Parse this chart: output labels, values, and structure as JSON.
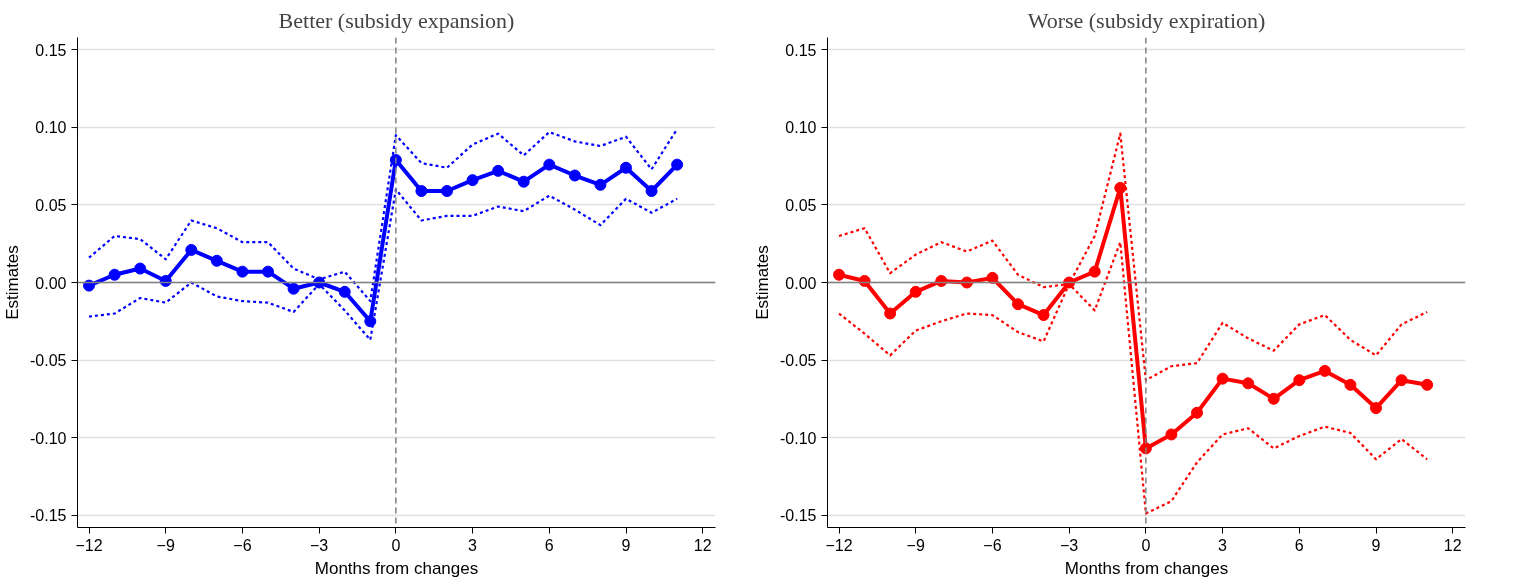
{
  "chart_data": [
    {
      "type": "line",
      "title": "Better (subsidy expansion)",
      "xlabel": "Months from changes",
      "ylabel": "Estimates",
      "x": [
        -12,
        -11,
        -10,
        -9,
        -8,
        -7,
        -6,
        -5,
        -4,
        -3,
        -2,
        -1,
        0,
        1,
        2,
        3,
        4,
        5,
        6,
        7,
        8,
        9,
        10,
        11
      ],
      "series": [
        {
          "color": "#0000ff",
          "marker": "circle",
          "line_style": "solid",
          "values": [
            -0.002,
            0.005,
            0.009,
            0.001,
            0.021,
            0.014,
            0.007,
            0.007,
            -0.004,
            0.0,
            -0.006,
            -0.025,
            0.079,
            0.059,
            0.059,
            0.066,
            0.072,
            0.065,
            0.076,
            0.069,
            0.063,
            0.074,
            0.059,
            0.076
          ]
        },
        {
          "color": "#0000ff",
          "marker": "none",
          "line_style": "dotted",
          "values": [
            0.016,
            0.03,
            0.028,
            0.015,
            0.04,
            0.035,
            0.026,
            0.026,
            0.009,
            0.002,
            0.007,
            -0.012,
            0.095,
            0.077,
            0.074,
            0.089,
            0.096,
            0.082,
            0.097,
            0.091,
            0.088,
            0.094,
            0.073,
            0.099
          ]
        },
        {
          "color": "#0000ff",
          "marker": "none",
          "line_style": "dotted",
          "values": [
            -0.022,
            -0.02,
            -0.01,
            -0.013,
            0.0,
            -0.009,
            -0.012,
            -0.013,
            -0.019,
            -0.001,
            -0.018,
            -0.037,
            0.06,
            0.04,
            0.043,
            0.043,
            0.049,
            0.046,
            0.056,
            0.047,
            0.037,
            0.054,
            0.045,
            0.054
          ]
        }
      ],
      "xlim": [
        -12.45,
        12.5
      ],
      "xticks": [
        -12,
        -9,
        -6,
        -3,
        0,
        3,
        6,
        9,
        12
      ],
      "ylim": [
        -0.158,
        0.158
      ],
      "yticks": [
        {
          "value": -0.15,
          "label": "-0.15"
        },
        {
          "value": -0.1,
          "label": "-0.10"
        },
        {
          "value": -0.05,
          "label": "-0.05"
        },
        {
          "value": 0,
          "label": "0.00"
        },
        {
          "value": 0.05,
          "label": "0.05"
        },
        {
          "value": 0.1,
          "label": "0.10"
        },
        {
          "value": 0.15,
          "label": "0.15"
        }
      ],
      "grid": "y",
      "ref_lines": [
        {
          "axis": "y",
          "value": 0,
          "color": "#808080",
          "line_style": "solid"
        },
        {
          "axis": "x",
          "value": 0,
          "color": "#808080",
          "line_style": "dashed"
        }
      ]
    },
    {
      "type": "line",
      "title": "Worse (subsidy expiration)",
      "xlabel": "Months from changes",
      "ylabel": "Estimates",
      "x": [
        -12,
        -11,
        -10,
        -9,
        -8,
        -7,
        -6,
        -5,
        -4,
        -3,
        -2,
        -1,
        0,
        1,
        2,
        3,
        4,
        5,
        6,
        7,
        8,
        9,
        10,
        11
      ],
      "series": [
        {
          "color": "#ff0000",
          "marker": "circle",
          "line_style": "solid",
          "values": [
            0.005,
            0.001,
            -0.02,
            -0.006,
            0.001,
            0.0,
            0.003,
            -0.014,
            -0.021,
            0.0,
            0.007,
            0.061,
            -0.107,
            -0.098,
            -0.084,
            -0.062,
            -0.065,
            -0.075,
            -0.063,
            -0.057,
            -0.066,
            -0.081,
            -0.063,
            -0.066
          ]
        },
        {
          "color": "#ff0000",
          "marker": "none",
          "line_style": "dotted",
          "values": [
            0.03,
            0.035,
            0.006,
            0.018,
            0.026,
            0.02,
            0.027,
            0.005,
            -0.003,
            -0.001,
            0.03,
            0.096,
            -0.063,
            -0.054,
            -0.052,
            -0.026,
            -0.036,
            -0.044,
            -0.027,
            -0.021,
            -0.037,
            -0.047,
            -0.027,
            -0.019
          ]
        },
        {
          "color": "#ff0000",
          "marker": "none",
          "line_style": "dotted",
          "values": [
            -0.02,
            -0.033,
            -0.047,
            -0.031,
            -0.025,
            -0.02,
            -0.021,
            -0.032,
            -0.038,
            -0.001,
            -0.018,
            0.026,
            -0.149,
            -0.141,
            -0.116,
            -0.098,
            -0.094,
            -0.107,
            -0.099,
            -0.093,
            -0.097,
            -0.114,
            -0.101,
            -0.114
          ]
        }
      ],
      "xlim": [
        -12.45,
        12.5
      ],
      "xticks": [
        -12,
        -9,
        -6,
        -3,
        0,
        3,
        6,
        9,
        12
      ],
      "ylim": [
        -0.158,
        0.158
      ],
      "yticks": [
        {
          "value": -0.15,
          "label": "-0.15"
        },
        {
          "value": -0.1,
          "label": "-0.10"
        },
        {
          "value": -0.05,
          "label": "-0.05"
        },
        {
          "value": 0,
          "label": "0.00"
        },
        {
          "value": 0.05,
          "label": "0.05"
        },
        {
          "value": 0.1,
          "label": "0.10"
        },
        {
          "value": 0.15,
          "label": "0.15"
        }
      ],
      "grid": "y",
      "ref_lines": [
        {
          "axis": "y",
          "value": 0,
          "color": "#808080",
          "line_style": "solid"
        },
        {
          "axis": "x",
          "value": 0,
          "color": "#808080",
          "line_style": "dashed"
        }
      ]
    }
  ]
}
